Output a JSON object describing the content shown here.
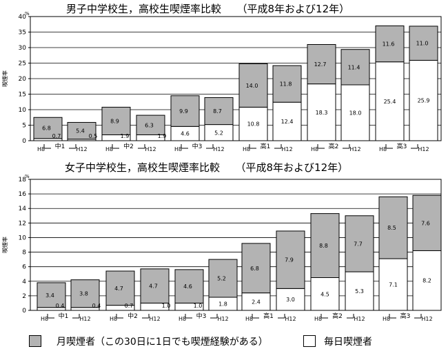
{
  "chart_data": [
    {
      "type": "bar",
      "title": "男子中学校生，高校生喫煙率比較　　（平成8年および12年）",
      "ylabel": "喫煙率",
      "unit": "%",
      "ylim": [
        0,
        40
      ],
      "yticks": [
        0,
        5,
        10,
        15,
        20,
        25,
        30,
        35,
        40
      ],
      "categories": [
        "H8",
        "H12",
        "H8",
        "H12",
        "H8",
        "H12",
        "H8",
        "H12",
        "H8",
        "H12",
        "H8",
        "H12"
      ],
      "groups": [
        "中1",
        "中2",
        "中3",
        "高1",
        "高2",
        "高3"
      ],
      "series": [
        {
          "name": "毎日喫煙者",
          "values": [
            0.7,
            0.5,
            1.9,
            1.9,
            4.6,
            5.2,
            10.8,
            12.4,
            18.3,
            18.0,
            25.4,
            25.9
          ]
        },
        {
          "name": "月喫煙者",
          "values": [
            6.8,
            5.4,
            8.9,
            6.3,
            9.9,
            8.7,
            14.0,
            11.8,
            12.7,
            11.4,
            11.6,
            11.0
          ]
        }
      ],
      "daily_labels": [
        "0.7",
        "0.5",
        "1.9",
        "1.9",
        "4.6",
        "5.2",
        "10.8",
        "12.4",
        "18.3",
        "18.0",
        "25.4",
        "25.9"
      ],
      "monthly_labels": [
        "6.8",
        "5.4",
        "8.9",
        "6.3",
        "9.9",
        "8.7",
        "14.0",
        "11.8",
        "12.7",
        "11.4",
        "11.6",
        "11.0"
      ]
    },
    {
      "type": "bar",
      "title": "女子中学校生，高校生喫煙率比較　　（平成8年および12年）",
      "ylabel": "喫煙率",
      "unit": "%",
      "ylim": [
        0,
        18
      ],
      "yticks": [
        0,
        2,
        4,
        6,
        8,
        10,
        12,
        14,
        16,
        18
      ],
      "categories": [
        "H8",
        "H12",
        "H8",
        "H12",
        "H8",
        "H12",
        "H8",
        "H12",
        "H8",
        "H12",
        "H8",
        "H12"
      ],
      "groups": [
        "中1",
        "中2",
        "中3",
        "高1",
        "高2",
        "高3"
      ],
      "series": [
        {
          "name": "毎日喫煙者",
          "values": [
            0.4,
            0.4,
            0.7,
            1.0,
            1.0,
            1.8,
            2.4,
            3.0,
            4.5,
            5.3,
            7.1,
            8.2
          ]
        },
        {
          "name": "月喫煙者",
          "values": [
            3.4,
            3.8,
            4.7,
            4.7,
            4.6,
            5.2,
            6.8,
            7.9,
            8.8,
            7.7,
            8.5,
            7.6
          ]
        }
      ],
      "daily_labels": [
        "0.4",
        "0.4",
        "0.7",
        "1.0",
        "1.0",
        "1.8",
        "2.4",
        "3.0",
        "4.5",
        "5.3",
        "7.1",
        "8.2"
      ],
      "monthly_labels": [
        "3.4",
        "3.8",
        "4.7",
        "4.7",
        "4.6",
        "5.2",
        "6.8",
        "7.9",
        "8.8",
        "7.7",
        "8.5",
        "7.6"
      ]
    }
  ],
  "legend": {
    "monthly_label": "月喫煙者（この30日に1日でも喫煙経験がある）",
    "daily_label": "毎日喫煙者",
    "monthly_color": "#b3b3b3",
    "daily_color": "#ffffff"
  }
}
